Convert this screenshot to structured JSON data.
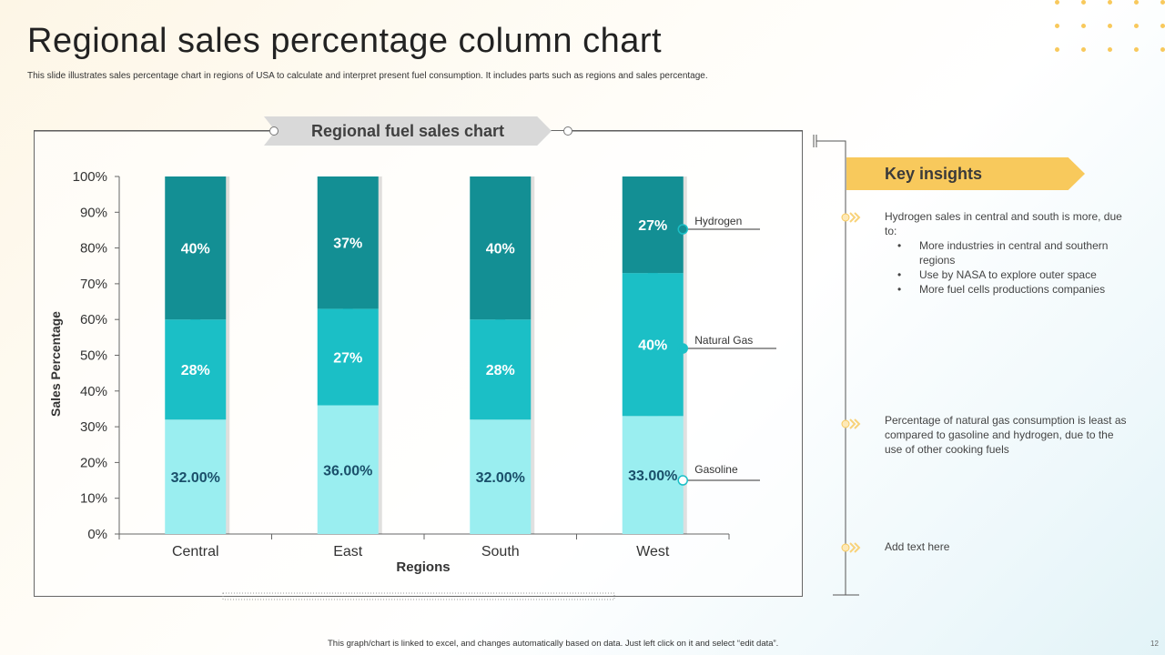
{
  "title": "Regional sales percentage column chart",
  "subtitle": "This slide illustrates sales percentage chart in regions of USA to calculate and interpret present fuel consumption. It includes parts such as regions and sales percentage.",
  "chart_banner": "Regional fuel sales chart",
  "key_insights": {
    "heading": "Key insights",
    "items": [
      {
        "text": "Hydrogen  sales in central and south is more, due to:",
        "bullets": [
          "More industries in central and southern regions",
          "Use by NASA to explore outer space",
          "More fuel cells productions companies"
        ]
      },
      {
        "text": "Percentage of natural gas consumption is least as compared to gasoline and hydrogen, due to the use of other cooking fuels",
        "bullets": []
      },
      {
        "text": "Add text here",
        "bullets": []
      }
    ]
  },
  "footer": "This graph/chart is linked to excel, and changes automatically based on data. Just left click on it and select “edit data”.",
  "page_number": "12",
  "colors": {
    "hydrogen": "#138f94",
    "natural_gas": "#1bbfc6",
    "gasoline": "#9aeef0",
    "accent": "#f8c95c"
  },
  "chart_data": {
    "type": "bar",
    "stacked": true,
    "xlabel": "Regions",
    "ylabel": "Sales Percentage",
    "ylim": [
      0,
      100
    ],
    "yticks": [
      "0%",
      "10%",
      "20%",
      "30%",
      "40%",
      "50%",
      "60%",
      "70%",
      "80%",
      "90%",
      "100%"
    ],
    "categories": [
      "Central",
      "East",
      "South",
      "West"
    ],
    "series": [
      {
        "name": "Gasoline",
        "values": [
          32,
          36,
          32,
          33
        ],
        "labels": [
          "32.00%",
          "36.00%",
          "32.00%",
          "33.00%"
        ]
      },
      {
        "name": "Natural Gas",
        "values": [
          28,
          27,
          28,
          40
        ],
        "labels": [
          "28%",
          "27%",
          "28%",
          "40%"
        ]
      },
      {
        "name": "Hydrogen",
        "values": [
          40,
          37,
          40,
          27
        ],
        "labels": [
          "40%",
          "37%",
          "40%",
          "27%"
        ]
      }
    ],
    "grid": false,
    "legend": "right"
  }
}
